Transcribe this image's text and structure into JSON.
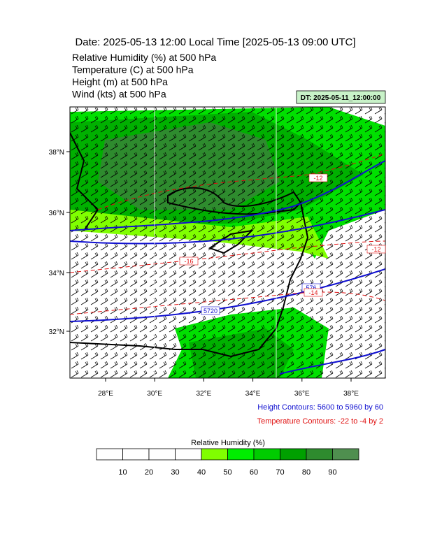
{
  "header": {
    "title": "Date: 2025-05-13  12:00 Local Time [2025-05-13  09:00 UTC]",
    "fields": [
      "Relative Humidity   (%)     at   500 hPa",
      "Temperature   (C)     at   500 hPa",
      "Height   (m)     at   500 hPa",
      "Wind   (kts)     at   500 hPa"
    ],
    "init_time": "DT: 2025-05-11_12:00:00"
  },
  "map": {
    "lat_labels": [
      "38°N",
      "36°N",
      "34°N",
      "32°N"
    ],
    "lon_labels": [
      "28°E",
      "30°E",
      "32°E",
      "34°E",
      "36°E",
      "38°E"
    ],
    "contour_labels": [
      "-16",
      "5720",
      "576",
      "-14",
      "-12",
      "-12"
    ],
    "height_info": "Height Contours: 5600 to 5960 by 60",
    "temp_info": "Temperature Contours: -22 to -4 by 2"
  },
  "colorbar": {
    "title": "Relative Humidity  (%)",
    "labels": [
      10,
      20,
      30,
      40,
      50,
      60,
      70,
      80,
      90
    ],
    "colors": [
      "#ffffff",
      "#ffffff",
      "#ffffff",
      "#ffffff",
      "#80ff00",
      "#00ee00",
      "#00cc00",
      "#00a000",
      "#2e8b2e",
      "#4f8f4f"
    ]
  }
}
